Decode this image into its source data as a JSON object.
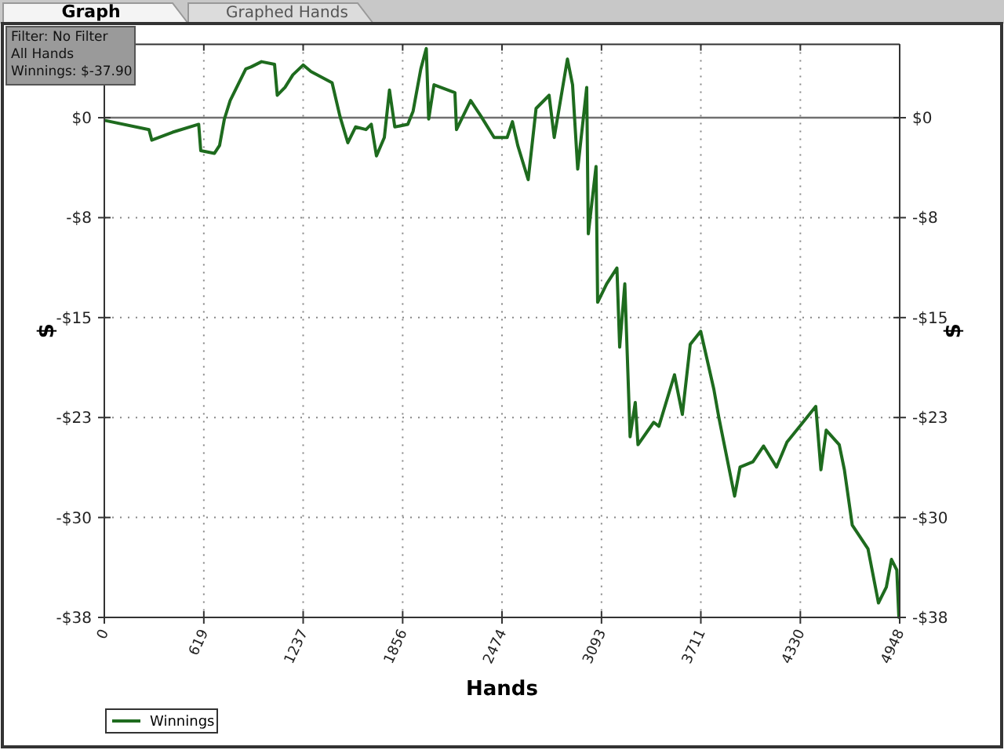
{
  "chart_data": {
    "type": "line",
    "xlabel": "Hands",
    "ylabel": "$",
    "y2label": "$",
    "annotations": [
      "Graph",
      "Graphed Hands",
      "Filter: No Filter",
      "All Hands",
      "Winnings: $-37.90"
    ],
    "xlim": [
      0,
      4948
    ],
    "xticks": [
      0,
      619,
      1237,
      1856,
      2474,
      3093,
      3711,
      4330,
      4948
    ],
    "ylim": [
      -37.9,
      5.56
    ],
    "yticks": [
      {
        "value": 0,
        "label": "$0"
      },
      {
        "value": -7.58,
        "label": "-$8"
      },
      {
        "value": -15.16,
        "label": "-$15"
      },
      {
        "value": -22.74,
        "label": "-$23"
      },
      {
        "value": -30.32,
        "label": "-$30"
      },
      {
        "value": -37.9,
        "label": "-$38"
      }
    ],
    "y2lim": [
      -37.9,
      5.56
    ],
    "y2ticks": [
      {
        "value": 0,
        "label": "$0"
      },
      {
        "value": -7.58,
        "label": "-$8"
      },
      {
        "value": -15.16,
        "label": "-$15"
      },
      {
        "value": -22.74,
        "label": "-$23"
      },
      {
        "value": -30.32,
        "label": "-$30"
      },
      {
        "value": -37.9,
        "label": "-$38"
      }
    ],
    "grid": true,
    "legend": "bottom left",
    "line_style": "solid",
    "marker": "none",
    "ref_lines": [
      {
        "axis": "y",
        "value": 0,
        "color": "#707070"
      }
    ],
    "series": [
      {
        "name": "Winnings",
        "color": "#1e6b1e",
        "x": [
          0,
          278,
          295,
          425,
          587,
          600,
          685,
          717,
          747,
          783,
          880,
          912,
          978,
          1059,
          1076,
          1124,
          1173,
          1237,
          1286,
          1417,
          1466,
          1515,
          1563,
          1628,
          1661,
          1693,
          1742,
          1774,
          1807,
          1888,
          1921,
          1969,
          2003,
          2018,
          2051,
          2181,
          2191,
          2279,
          2344,
          2425,
          2506,
          2539,
          2572,
          2637,
          2686,
          2767,
          2799,
          2881,
          2913,
          2945,
          3001,
          3011,
          3059,
          3069,
          3125,
          3189,
          3206,
          3238,
          3271,
          3303,
          3320,
          3418,
          3450,
          3547,
          3596,
          3645,
          3710,
          3792,
          3824,
          3921,
          3955,
          4035,
          4101,
          4182,
          4247,
          4426,
          4458,
          4491,
          4572,
          4604,
          4653,
          4751,
          4816,
          4865,
          4897,
          4930,
          4943,
          4948
        ],
        "values": [
          -0.2,
          -0.9,
          -1.7,
          -1.1,
          -0.5,
          -2.5,
          -2.7,
          -2.1,
          -0.1,
          1.3,
          3.7,
          3.85,
          4.25,
          4.05,
          1.7,
          2.3,
          3.25,
          4.0,
          3.5,
          2.65,
          0.1,
          -1.9,
          -0.7,
          -0.9,
          -0.5,
          -2.9,
          -1.5,
          2.1,
          -0.7,
          -0.5,
          0.5,
          3.7,
          5.25,
          -0.1,
          2.5,
          1.9,
          -0.9,
          1.3,
          0.1,
          -1.5,
          -1.5,
          -0.3,
          -2.1,
          -4.7,
          0.7,
          1.7,
          -1.5,
          4.45,
          2.5,
          -3.9,
          2.3,
          -8.8,
          -3.7,
          -14.0,
          -12.6,
          -11.4,
          -17.4,
          -12.6,
          -24.2,
          -21.6,
          -24.8,
          -23.1,
          -23.4,
          -19.5,
          -22.5,
          -17.2,
          -16.2,
          -20.6,
          -22.8,
          -28.7,
          -26.5,
          -26.1,
          -24.9,
          -26.5,
          -24.6,
          -21.9,
          -26.7,
          -23.7,
          -24.8,
          -26.7,
          -30.9,
          -32.7,
          -36.8,
          -35.6,
          -33.5,
          -34.3,
          -37.9,
          -37.9
        ]
      }
    ]
  }
}
